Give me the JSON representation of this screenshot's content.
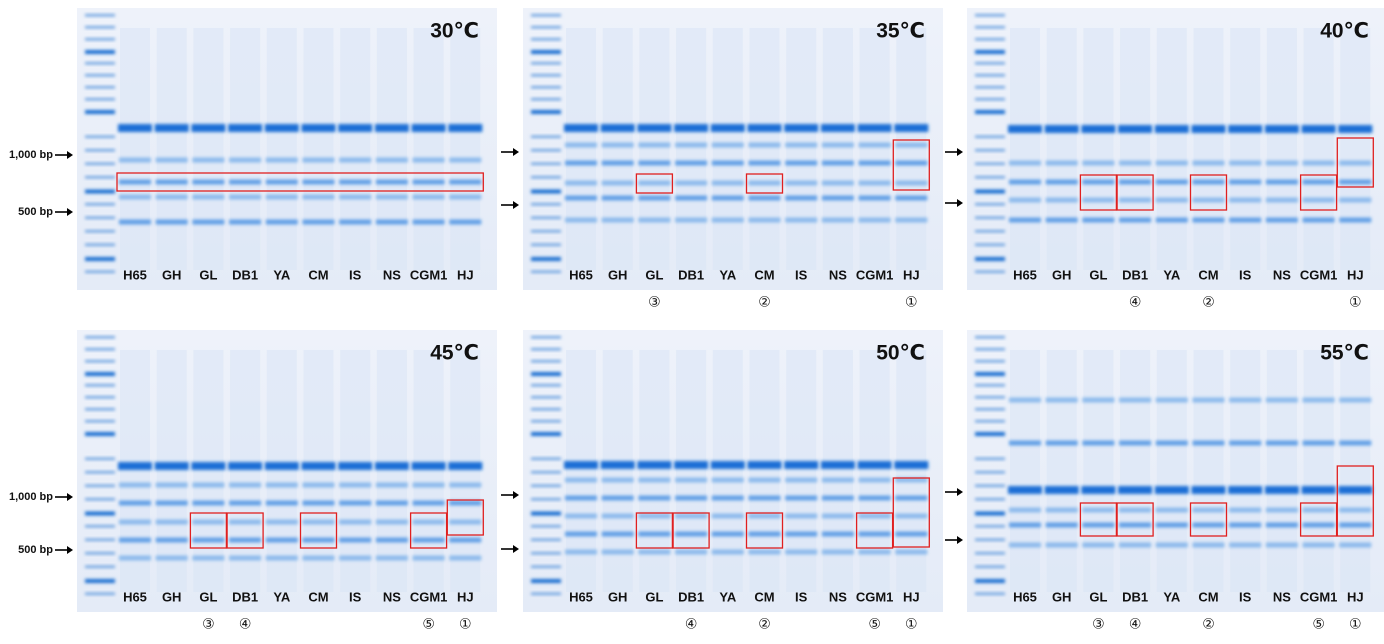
{
  "panels": [
    {
      "title": "30℃",
      "lanes": [
        "H65",
        "GH",
        "GL",
        "DB1",
        "YA",
        "CM",
        "IS",
        "NS",
        "CGM1",
        "HJ"
      ],
      "marks": [
        null,
        null,
        null,
        null,
        null,
        null,
        null,
        null,
        null,
        null
      ],
      "markers": [
        "1,000 bp",
        "500 bp"
      ]
    },
    {
      "title": "35℃",
      "lanes": [
        "H65",
        "GH",
        "GL",
        "DB1",
        "YA",
        "CM",
        "IS",
        "NS",
        "CGM1",
        "HJ"
      ],
      "marks": [
        null,
        null,
        "③",
        null,
        null,
        "②",
        null,
        null,
        null,
        "①"
      ]
    },
    {
      "title": "40℃",
      "lanes": [
        "H65",
        "GH",
        "GL",
        "DB1",
        "YA",
        "CM",
        "IS",
        "NS",
        "CGM1",
        "HJ"
      ],
      "marks": [
        null,
        null,
        null,
        "④",
        null,
        "②",
        null,
        null,
        null,
        "①"
      ]
    },
    {
      "title": "45℃",
      "lanes": [
        "H65",
        "GH",
        "GL",
        "DB1",
        "YA",
        "CM",
        "IS",
        "NS",
        "CGM1",
        "HJ"
      ],
      "marks": [
        null,
        null,
        "③",
        "④",
        null,
        null,
        null,
        null,
        "⑤",
        "①"
      ],
      "markers": [
        "1,000 bp",
        "500 bp"
      ]
    },
    {
      "title": "50℃",
      "lanes": [
        "H65",
        "GH",
        "GL",
        "DB1",
        "YA",
        "CM",
        "IS",
        "NS",
        "CGM1",
        "HJ"
      ],
      "marks": [
        null,
        null,
        null,
        "④",
        null,
        "②",
        null,
        null,
        "⑤",
        "①"
      ]
    },
    {
      "title": "55℃",
      "lanes": [
        "H65",
        "GH",
        "GL",
        "DB1",
        "YA",
        "CM",
        "IS",
        "NS",
        "CGM1",
        "HJ"
      ],
      "marks": [
        null,
        null,
        "③",
        "④",
        null,
        "②",
        null,
        null,
        "⑤",
        "①"
      ]
    }
  ]
}
